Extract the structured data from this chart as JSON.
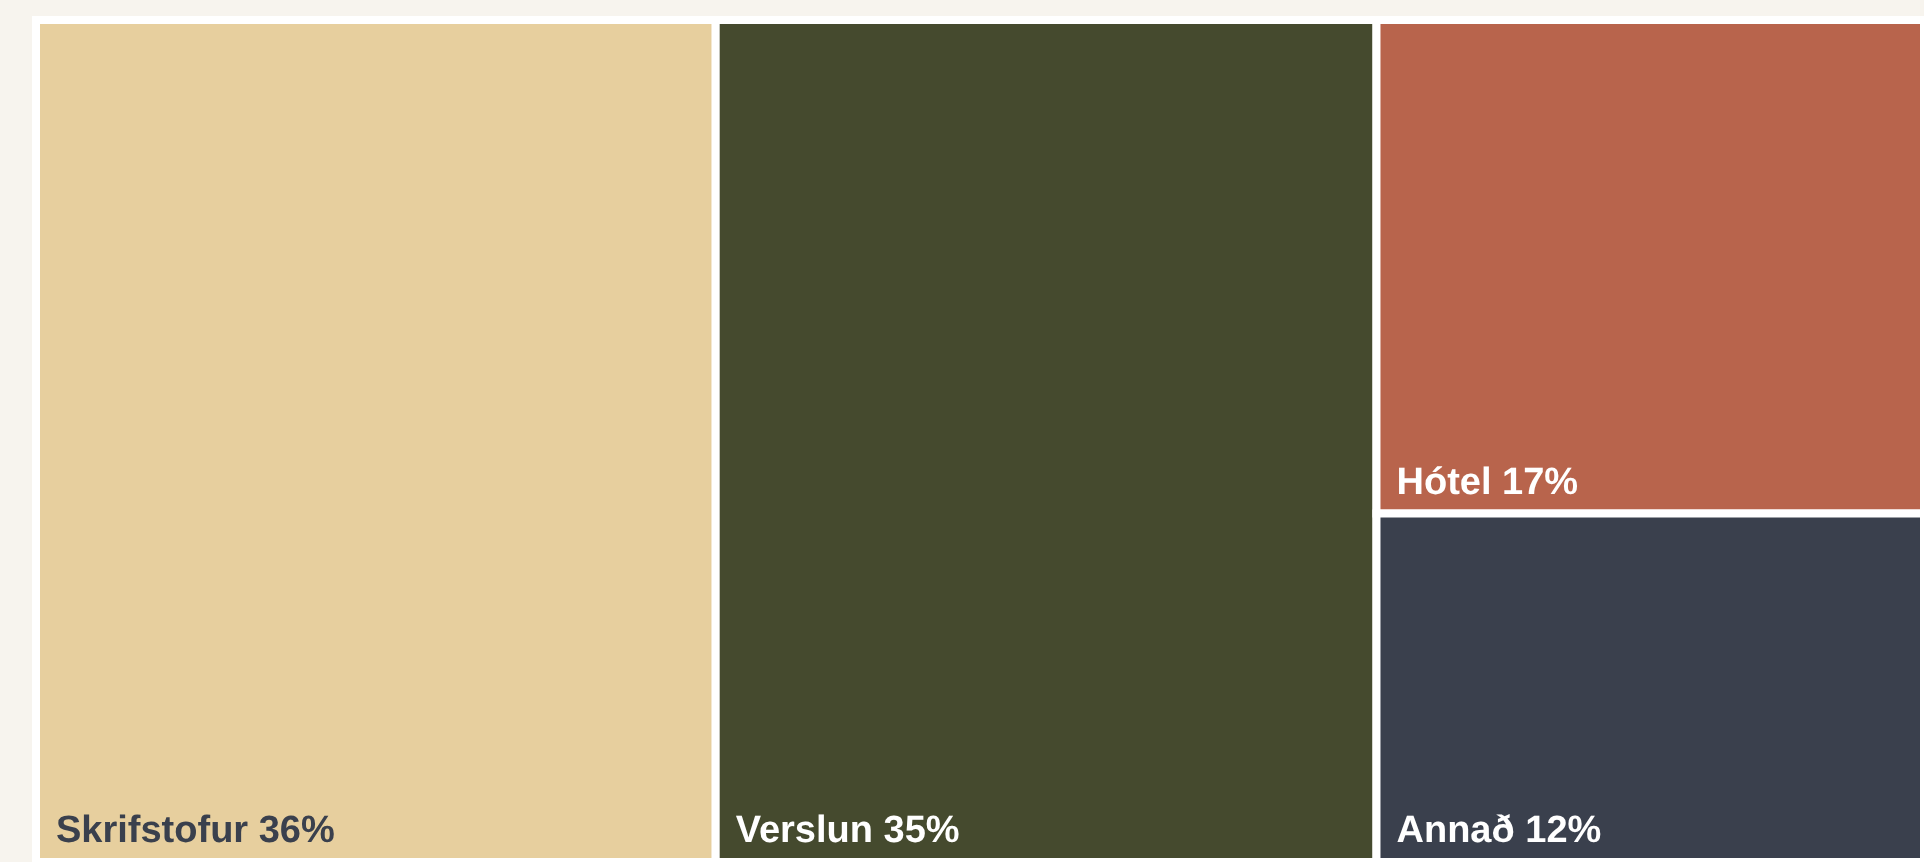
{
  "chart_data": {
    "type": "other",
    "categories": [
      "Skrifstofur",
      "Verslun",
      "Hótel",
      "Annað"
    ],
    "values": [
      36,
      35,
      17,
      12
    ],
    "colors": [
      "#e7cf9e",
      "#454a2e",
      "#b8644c",
      "#3a404d"
    ],
    "value_labels": [
      "36%",
      "35%",
      "17%",
      "12%"
    ]
  }
}
